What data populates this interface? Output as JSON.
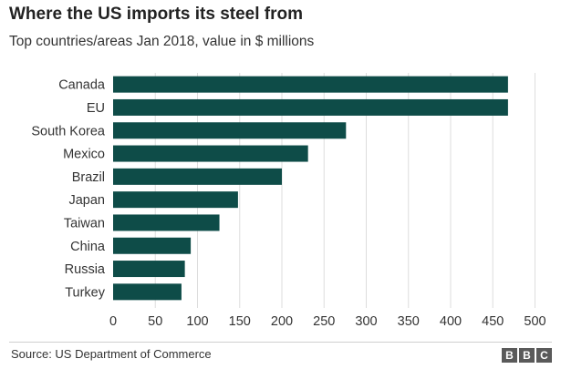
{
  "header": {
    "title": "Where the US imports its steel from",
    "subtitle": "Top countries/areas Jan 2018, value in $ millions"
  },
  "footer": {
    "source": "Source: US Department of Commerce",
    "logo_letters": [
      "B",
      "B",
      "C"
    ]
  },
  "colors": {
    "bar": "#0e4c48",
    "grid": "#dddddd",
    "axis_text": "#333333"
  },
  "chart_data": {
    "type": "bar",
    "orientation": "horizontal",
    "title": "Where the US imports its steel from",
    "subtitle": "Top countries/areas Jan 2018, value in $ millions",
    "xlabel": "",
    "ylabel": "",
    "categories": [
      "Canada",
      "EU",
      "South Korea",
      "Mexico",
      "Brazil",
      "Japan",
      "Taiwan",
      "China",
      "Russia",
      "Turkey"
    ],
    "values": [
      468,
      468,
      276,
      231,
      200,
      148,
      126,
      92,
      85,
      81
    ],
    "xlim": [
      0,
      500
    ],
    "xticks": [
      "0",
      "50",
      "100",
      "150",
      "200",
      "250",
      "300",
      "350",
      "400",
      "450",
      "500"
    ],
    "grid": true,
    "legend": "none"
  }
}
